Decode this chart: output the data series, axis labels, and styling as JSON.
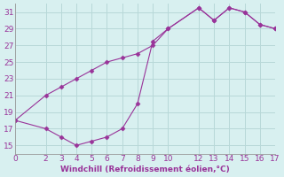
{
  "line1_x": [
    0,
    2,
    3,
    4,
    5,
    6,
    7,
    8,
    9,
    10,
    12,
    13,
    14,
    15,
    16,
    17
  ],
  "line1_y": [
    18,
    21,
    22,
    23,
    24,
    25,
    25.5,
    26,
    27,
    29,
    31.5,
    30,
    31.5,
    31,
    29.5,
    29
  ],
  "line2_x": [
    0,
    2,
    3,
    4,
    5,
    6,
    7,
    8,
    9,
    10,
    12,
    13,
    14,
    15,
    16,
    17
  ],
  "line2_y": [
    18,
    17,
    16,
    15,
    15.5,
    16,
    17,
    20,
    27.5,
    29,
    31.5,
    30,
    31.5,
    31,
    29.5,
    29
  ],
  "line_color": "#993399",
  "marker_color": "#993399",
  "bg_color": "#d8f0f0",
  "grid_color": "#b8d8d8",
  "xlabel": "Windchill (Refroidissement éolien,°C)",
  "xlim": [
    0,
    17
  ],
  "ylim": [
    14,
    32
  ],
  "xticks": [
    0,
    2,
    3,
    4,
    5,
    6,
    7,
    8,
    9,
    10,
    12,
    13,
    14,
    15,
    16,
    17
  ],
  "yticks": [
    15,
    17,
    19,
    21,
    23,
    25,
    27,
    29,
    31
  ]
}
